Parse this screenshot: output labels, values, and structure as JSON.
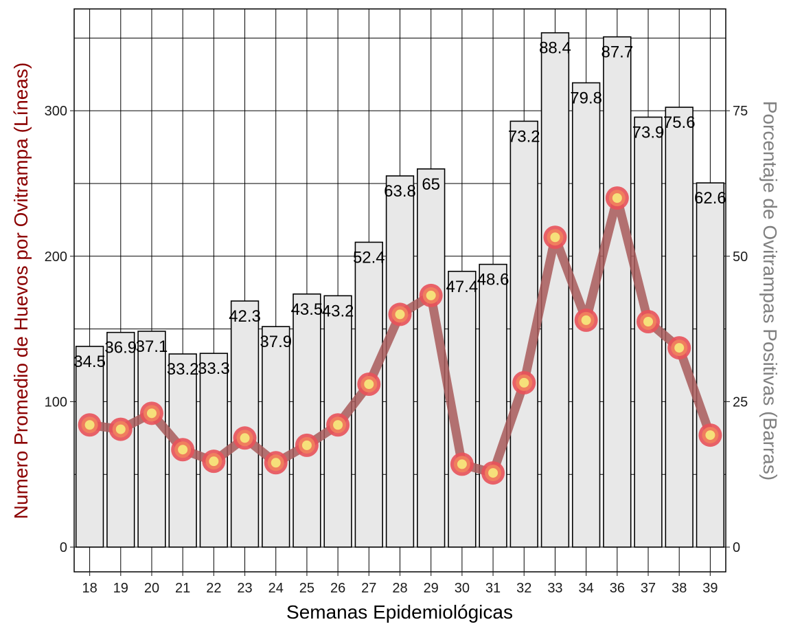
{
  "chart_data": {
    "type": "bar+line",
    "categories": [
      "18",
      "19",
      "20",
      "21",
      "22",
      "23",
      "24",
      "25",
      "26",
      "27",
      "28",
      "29",
      "30",
      "31",
      "32",
      "33",
      "34",
      "36",
      "37",
      "38",
      "39"
    ],
    "bars": {
      "name": "Porcentaje de Ovitrampas Positivas",
      "values": [
        34.5,
        36.9,
        37.1,
        33.2,
        33.3,
        42.3,
        37.9,
        43.5,
        43.2,
        52.4,
        63.8,
        65,
        47.4,
        48.6,
        73.2,
        88.4,
        79.8,
        87.7,
        73.9,
        75.6,
        62.6
      ],
      "labels": [
        "34.5",
        "36.9",
        "37.1",
        "33.2",
        "33.3",
        "42.3",
        "37.9",
        "43.5",
        "43.2",
        "52.4",
        "63.8",
        "65",
        "47.4",
        "48.6",
        "73.2",
        "88.4",
        "79.8",
        "87.7",
        "73.9",
        "75.6",
        "62.6"
      ]
    },
    "line": {
      "name": "Numero Promedio de Huevos por Ovitrampa",
      "values": [
        84,
        81,
        92,
        67,
        59,
        75,
        58,
        70,
        84,
        112,
        160,
        173,
        57,
        51,
        113,
        213,
        156,
        240,
        155,
        137,
        77
      ]
    },
    "xlabel": "Semanas Epidemiológicas",
    "ylabel_left": "Numero Promedio de Huevos por Ovitrampa (Líneas)",
    "ylabel_right": "Porcentaje de Ovitrampas Positivas (Barras)",
    "ylim_left": [
      -17,
      370
    ],
    "ylim_right": [
      -4.25,
      92.5
    ],
    "yticks_left": [
      0,
      100,
      200,
      300
    ],
    "yticks_right": [
      0,
      25,
      50,
      75
    ],
    "grid": true,
    "colors": {
      "bar_fill": "#e8e8e8",
      "bar_stroke": "#000000",
      "line": "#a85a5a",
      "marker_outer": "#e8525a",
      "marker_middle": "#f07e5e",
      "marker_inner": "#f6e07a",
      "ylabel_left": "#8b0000",
      "ylabel_right": "#808080"
    }
  }
}
